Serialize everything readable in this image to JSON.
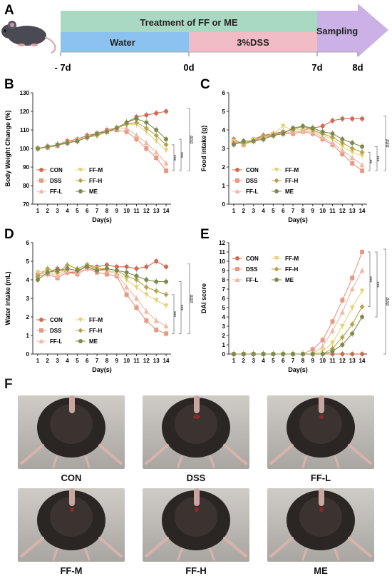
{
  "panel_letters": {
    "A": "A",
    "B": "B",
    "C": "C",
    "D": "D",
    "E": "E",
    "F": "F"
  },
  "timeline": {
    "treatment_label": "Treatment of FF or ME",
    "water_label": "Water",
    "dss_label": "3%DSS",
    "sampling_label": "Sampling",
    "ticks": [
      "- 7d",
      "0d",
      "7d",
      "8d"
    ],
    "colors": {
      "treatment": "#a9d9c3",
      "water": "#8cc2ef",
      "dss": "#f2bcc6",
      "sampling": "#c7a9e3"
    }
  },
  "legend_colors": {
    "CON": "#cf6b50",
    "DSS": "#e39a86",
    "FF-L": "#f2b6a4",
    "FF-M": "#e6d27e",
    "FF-H": "#b5a44e",
    "ME": "#7c8a4e"
  },
  "chart_data": [
    {
      "type": "line",
      "panel": "B",
      "xlabel": "Day(s)",
      "ylabel": "Body Weight Change (%)",
      "x": [
        1,
        2,
        3,
        4,
        5,
        6,
        7,
        8,
        9,
        10,
        11,
        12,
        13,
        14
      ],
      "ylim": [
        70,
        130
      ],
      "yticks": [
        70,
        80,
        90,
        100,
        110,
        120,
        130
      ],
      "series": [
        {
          "name": "CON",
          "values": [
            100,
            101,
            102,
            104,
            105,
            107,
            108,
            110,
            111,
            114,
            117,
            118,
            119,
            120
          ]
        },
        {
          "name": "DSS",
          "values": [
            100,
            100.5,
            101.5,
            103,
            104,
            106,
            108,
            109,
            110,
            109,
            105,
            100,
            95,
            88
          ]
        },
        {
          "name": "FF-L",
          "values": [
            100,
            101,
            102,
            103,
            105,
            106,
            108,
            109,
            111,
            111,
            107,
            103,
            98,
            92
          ]
        },
        {
          "name": "FF-M",
          "values": [
            100,
            101,
            102,
            103,
            104,
            106,
            107,
            109,
            111,
            113,
            113,
            109,
            104,
            99
          ]
        },
        {
          "name": "FF-H",
          "values": [
            100,
            101,
            102,
            103,
            104,
            106,
            107,
            109,
            111,
            113,
            114,
            111,
            107,
            102
          ]
        },
        {
          "name": "ME",
          "values": [
            100,
            101,
            102,
            103,
            104,
            106,
            108,
            109,
            111,
            114,
            116,
            114,
            110,
            105
          ]
        }
      ],
      "annotations": [
        "***",
        "***",
        "###"
      ]
    },
    {
      "type": "line",
      "panel": "C",
      "xlabel": "Day(s)",
      "ylabel": "Food intake (g)",
      "x": [
        1,
        2,
        3,
        4,
        5,
        6,
        7,
        8,
        9,
        10,
        11,
        12,
        13,
        14
      ],
      "ylim": [
        0,
        6
      ],
      "yticks": [
        0,
        1,
        2,
        3,
        4,
        5,
        6
      ],
      "series": [
        {
          "name": "CON",
          "values": [
            3.5,
            3.2,
            3.5,
            3.7,
            3.8,
            3.9,
            4.0,
            4.0,
            4.1,
            4.2,
            4.5,
            4.6,
            4.6,
            4.6
          ]
        },
        {
          "name": "DSS",
          "values": [
            3.4,
            3.2,
            3.4,
            3.6,
            3.7,
            3.8,
            3.8,
            3.9,
            3.8,
            3.5,
            3.2,
            2.7,
            2.2,
            1.8
          ]
        },
        {
          "name": "FF-L",
          "values": [
            3.3,
            3.3,
            3.4,
            3.5,
            3.7,
            3.8,
            3.9,
            3.9,
            3.9,
            3.6,
            3.3,
            2.9,
            2.5,
            2.1
          ]
        },
        {
          "name": "FF-M",
          "values": [
            3.4,
            3.2,
            3.5,
            3.6,
            3.8,
            4.2,
            4.0,
            4.0,
            4.0,
            3.7,
            3.5,
            3.1,
            2.8,
            2.6
          ]
        },
        {
          "name": "FF-H",
          "values": [
            3.3,
            3.3,
            3.4,
            3.7,
            3.7,
            3.9,
            4.0,
            4.2,
            4.0,
            3.8,
            3.6,
            3.3,
            3.0,
            2.8
          ]
        },
        {
          "name": "ME",
          "values": [
            3.2,
            3.4,
            3.4,
            3.5,
            3.7,
            3.8,
            4.1,
            4.2,
            4.1,
            3.9,
            3.8,
            3.5,
            3.3,
            3.1
          ]
        }
      ],
      "annotations": [
        "**",
        "***",
        "###"
      ]
    },
    {
      "type": "line",
      "panel": "D",
      "xlabel": "Day(s)",
      "ylabel": "Water intake (mL)",
      "x": [
        1,
        2,
        3,
        4,
        5,
        6,
        7,
        8,
        9,
        10,
        11,
        12,
        13,
        14
      ],
      "ylim": [
        0,
        6
      ],
      "yticks": [
        0,
        1,
        2,
        3,
        4,
        5,
        6
      ],
      "series": [
        {
          "name": "CON",
          "values": [
            4.3,
            4.4,
            4.6,
            4.4,
            4.4,
            4.8,
            4.7,
            4.8,
            4.7,
            4.7,
            4.6,
            4.7,
            5.0,
            4.7
          ]
        },
        {
          "name": "DSS",
          "values": [
            4.2,
            4.3,
            4.1,
            4.4,
            4.3,
            4.6,
            4.4,
            4.3,
            4.2,
            3.2,
            2.5,
            1.8,
            1.3,
            1.1
          ]
        },
        {
          "name": "FF-L",
          "values": [
            4.3,
            4.4,
            4.2,
            4.5,
            4.4,
            4.6,
            4.5,
            4.5,
            4.3,
            3.6,
            3.0,
            2.3,
            1.8,
            1.5
          ]
        },
        {
          "name": "FF-M",
          "values": [
            4.4,
            4.5,
            4.3,
            4.6,
            4.5,
            4.7,
            4.6,
            4.5,
            4.4,
            4.0,
            3.6,
            3.2,
            2.9,
            2.6
          ]
        },
        {
          "name": "FF-H",
          "values": [
            4.2,
            4.6,
            4.4,
            4.8,
            4.6,
            4.8,
            4.6,
            4.6,
            4.5,
            4.2,
            4.0,
            3.6,
            3.4,
            3.2
          ]
        },
        {
          "name": "ME",
          "values": [
            4.0,
            4.4,
            4.5,
            4.6,
            4.5,
            4.7,
            4.5,
            4.6,
            4.5,
            4.4,
            4.2,
            4.0,
            3.9,
            3.9
          ]
        }
      ],
      "annotations": [
        "***",
        "***",
        "###"
      ]
    },
    {
      "type": "line",
      "panel": "E",
      "xlabel": "Day(s)",
      "ylabel": "DAI score",
      "x": [
        1,
        2,
        3,
        4,
        5,
        6,
        7,
        8,
        9,
        10,
        11,
        12,
        13,
        14
      ],
      "ylim": [
        0,
        12
      ],
      "yticks": [
        0,
        1,
        2,
        3,
        4,
        5,
        6,
        7,
        8,
        9,
        10,
        11,
        12
      ],
      "series": [
        {
          "name": "CON",
          "values": [
            0,
            0,
            0,
            0,
            0,
            0,
            0,
            0,
            0,
            0,
            0,
            0,
            0,
            0
          ]
        },
        {
          "name": "DSS",
          "values": [
            0,
            0,
            0,
            0,
            0,
            0,
            0,
            0,
            0.5,
            1.5,
            3.5,
            5.8,
            8.2,
            11
          ]
        },
        {
          "name": "FF-L",
          "values": [
            0,
            0,
            0,
            0,
            0,
            0,
            0,
            0,
            0,
            0.8,
            2.5,
            4.5,
            7,
            9
          ]
        },
        {
          "name": "FF-M",
          "values": [
            0,
            0,
            0,
            0,
            0,
            0,
            0,
            0,
            0,
            0.3,
            1.2,
            3.0,
            5,
            6.8
          ]
        },
        {
          "name": "FF-H",
          "values": [
            0,
            0,
            0,
            0,
            0,
            0,
            0,
            0,
            0,
            0,
            0.6,
            1.8,
            3.2,
            5.1
          ]
        },
        {
          "name": "ME",
          "values": [
            0,
            0,
            0,
            0,
            0,
            0,
            0,
            0,
            0,
            0,
            0.3,
            1.0,
            2.2,
            4
          ]
        }
      ],
      "annotations": [
        "***",
        "***",
        "###"
      ]
    }
  ],
  "photos": [
    {
      "label": "CON"
    },
    {
      "label": "DSS"
    },
    {
      "label": "FF-L"
    },
    {
      "label": "FF-M"
    },
    {
      "label": "FF-H"
    },
    {
      "label": "ME"
    }
  ]
}
